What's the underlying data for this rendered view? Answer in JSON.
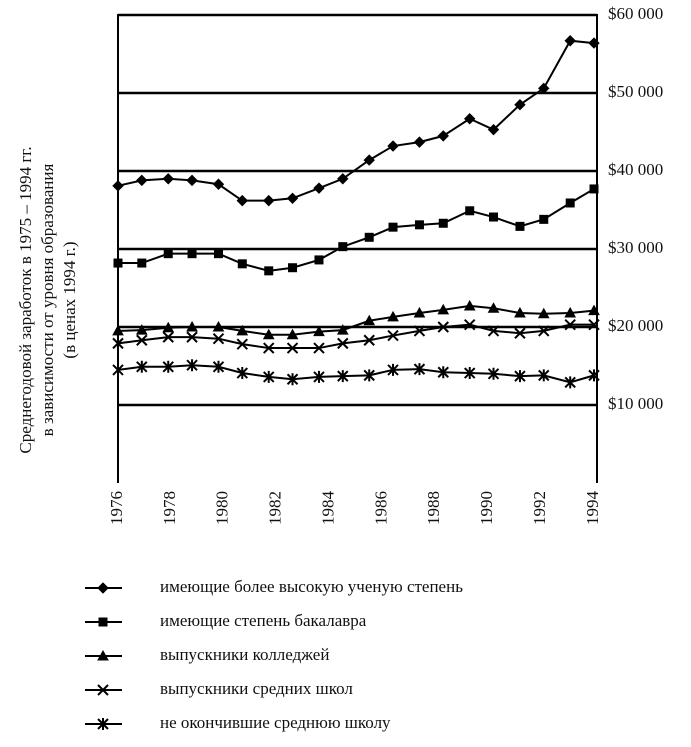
{
  "chart_data": {
    "type": "line",
    "ylabel": [
      "Среднегодовой заработок в 1975 – 1994 гг.",
      "в зависимости от уровня образования",
      "(в ценах 1994 г.)"
    ],
    "x": [
      1976,
      1976.9,
      1977.9,
      1978.8,
      1979.8,
      1980.7,
      1981.7,
      1982.6,
      1983.6,
      1984.5,
      1985.5,
      1986.4,
      1987.4,
      1988.3,
      1989.3,
      1990.2,
      1991.2,
      1992.1,
      1993.1,
      1994
    ],
    "xlim": [
      1976,
      1994
    ],
    "xticks": [
      1976,
      1978,
      1980,
      1982,
      1984,
      1986,
      1988,
      1990,
      1992,
      1994
    ],
    "ylim": [
      0,
      60000
    ],
    "yticks": [
      {
        "value": 10000,
        "label": "$10 000"
      },
      {
        "value": 20000,
        "label": "$20 000"
      },
      {
        "value": 30000,
        "label": "$30 000"
      },
      {
        "value": 40000,
        "label": "$40 000"
      },
      {
        "value": 50000,
        "label": "$50 000"
      },
      {
        "value": 60000,
        "label": "$60 000"
      }
    ],
    "grid": true,
    "series": [
      {
        "name": "имеющие более высокую ученую степень",
        "color": "#000000",
        "marker": "diamond",
        "values": [
          38100,
          38800,
          39000,
          38800,
          38300,
          36200,
          36200,
          36500,
          37800,
          39000,
          41400,
          43200,
          43700,
          44500,
          46700,
          45300,
          48500,
          50600,
          56700,
          56400
        ]
      },
      {
        "name": "имеющие степень бакалавра",
        "color": "#000000",
        "marker": "square",
        "values": [
          28200,
          28200,
          29400,
          29400,
          29400,
          28100,
          27200,
          27600,
          28600,
          30300,
          31500,
          32800,
          33100,
          33300,
          34900,
          34100,
          32900,
          33800,
          35900,
          37700
        ]
      },
      {
        "name": "выпускники колледжей",
        "color": "#000000",
        "marker": "triangle",
        "values": [
          19500,
          19600,
          19900,
          20000,
          20000,
          19500,
          19000,
          19000,
          19400,
          19600,
          20800,
          21300,
          21800,
          22200,
          22700,
          22400,
          21800,
          21700,
          21800,
          22100
        ]
      },
      {
        "name": "выпускники средних школ",
        "color": "#000000",
        "marker": "x",
        "values": [
          17900,
          18300,
          18700,
          18700,
          18500,
          17800,
          17300,
          17300,
          17300,
          17900,
          18300,
          18900,
          19500,
          20000,
          20300,
          19500,
          19200,
          19500,
          20300,
          20300
        ]
      },
      {
        "name": "не окончившие среднюю школу",
        "color": "#000000",
        "marker": "star",
        "values": [
          14500,
          14900,
          14900,
          15100,
          14900,
          14100,
          13600,
          13300,
          13600,
          13700,
          13800,
          14500,
          14600,
          14200,
          14100,
          14000,
          13700,
          13800,
          12900,
          13800
        ]
      }
    ]
  }
}
